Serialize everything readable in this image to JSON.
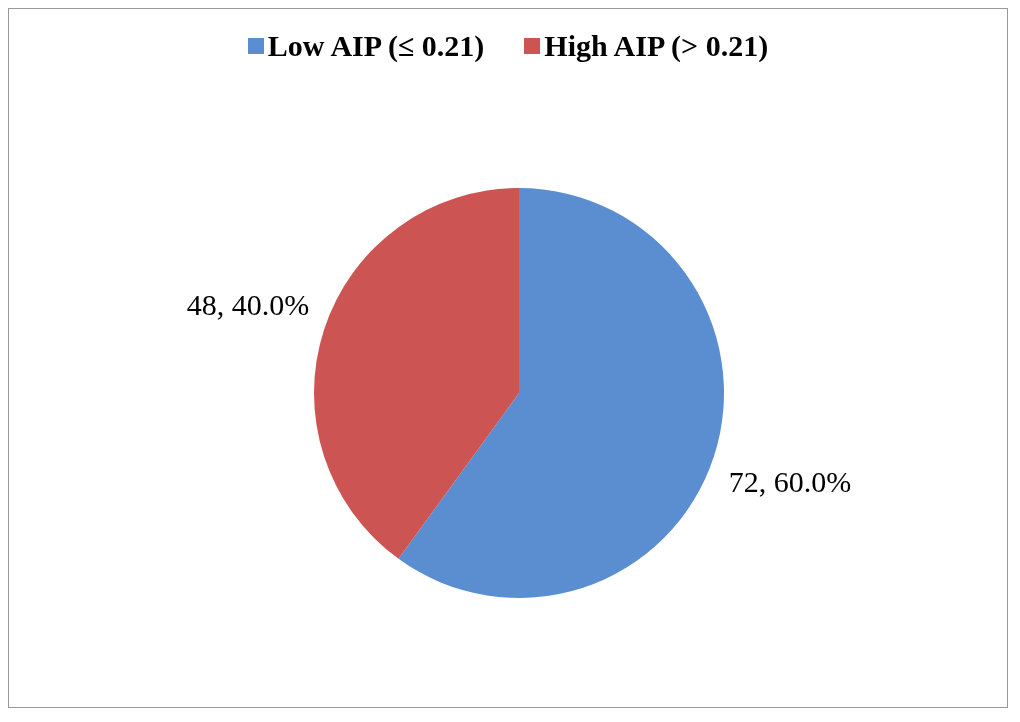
{
  "chart_data": {
    "type": "pie",
    "categories": [
      "Low AIP (≤ 0.21)",
      "High AIP (> 0.21)"
    ],
    "values": [
      72,
      48
    ],
    "colors": [
      "#5a8ed0",
      "#cc5452"
    ],
    "value_labels": [
      "72, 60.0%",
      "48, 40.0%"
    ],
    "legend": "top"
  }
}
